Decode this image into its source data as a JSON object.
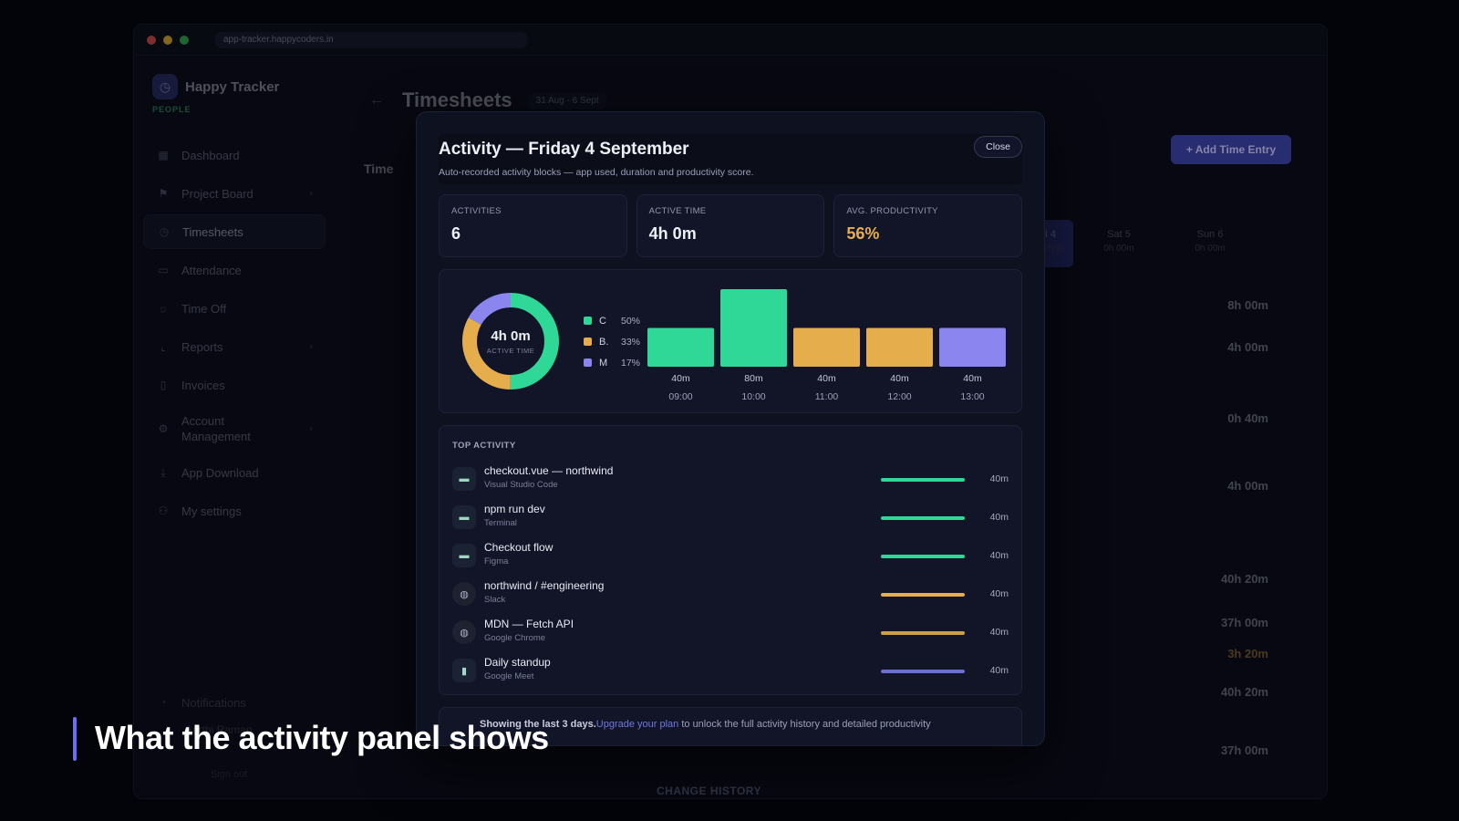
{
  "browser": {
    "url": "app-tracker.happycoders.in"
  },
  "sidebar": {
    "brand": "Happy Tracker",
    "brand_sub": "PEOPLE",
    "items": [
      {
        "label": "Dashboard",
        "icon": "grid-icon"
      },
      {
        "label": "Project Board",
        "icon": "board-icon"
      },
      {
        "label": "Timesheets",
        "icon": "clock-icon"
      },
      {
        "label": "Attendance",
        "icon": "calendar-icon"
      },
      {
        "label": "Time Off",
        "icon": "sun-icon"
      },
      {
        "label": "Reports",
        "icon": "chart-icon"
      },
      {
        "label": "Invoices",
        "icon": "file-icon"
      },
      {
        "label": "Account Management",
        "icon": "gear-icon"
      },
      {
        "label": "App Download",
        "icon": "download-icon"
      },
      {
        "label": "My settings",
        "icon": "user-icon"
      }
    ],
    "notifications": "Notifications",
    "user_name": "Aarthi Raman",
    "sign_out": "Sign out"
  },
  "page": {
    "title": "Timesheets",
    "date_range": "31 Aug - 6 Sept",
    "add_button": "+ Add Time Entry",
    "section_title": "Time",
    "week_days": [
      {
        "day": "Fri 4",
        "hours": "8h 00m"
      },
      {
        "day": "Sat 5",
        "hours": "0h 00m"
      },
      {
        "day": "Sun 6",
        "hours": "0h 00m"
      }
    ],
    "right_values": [
      "8h 00m",
      "4h 00m",
      "0h 40m",
      "4h 00m",
      "40h 20m",
      "37h 00m",
      "3h 20m",
      "40h 20m",
      "37h 00m"
    ],
    "change_history": "CHANGE HISTORY"
  },
  "modal": {
    "title": "Activity — Friday 4 September",
    "subtitle": "Auto-recorded activity blocks — app used, duration and productivity score.",
    "close_label": "Close",
    "stats": [
      {
        "label": "ACTIVITIES",
        "value": "6"
      },
      {
        "label": "ACTIVE TIME",
        "value": "4h 0m"
      },
      {
        "label": "AVG. PRODUCTIVITY",
        "value": "56%"
      }
    ],
    "donut_value": "4h 0m",
    "donut_label": "ACTIVE TIME",
    "top_activity_title": "TOP ACTIVITY",
    "activities": [
      {
        "name": "checkout.vue — northwind",
        "app": "Visual Studio Code",
        "duration": "40m",
        "icon": "terminal-icon",
        "color": "#2fd897"
      },
      {
        "name": "npm run dev",
        "app": "Terminal",
        "duration": "40m",
        "icon": "terminal-icon",
        "color": "#2fd897"
      },
      {
        "name": "Checkout flow",
        "app": "Figma",
        "duration": "40m",
        "icon": "terminal-icon",
        "color": "#2fd897"
      },
      {
        "name": "northwind / #engineering",
        "app": "Slack",
        "duration": "40m",
        "icon": "globe-icon",
        "color": "#e6ad4c"
      },
      {
        "name": "MDN — Fetch API",
        "app": "Google Chrome",
        "duration": "40m",
        "icon": "globe-icon",
        "color": "#c8a048"
      },
      {
        "name": "Daily standup",
        "app": "Google Meet",
        "duration": "40m",
        "icon": "mic-icon",
        "color": "#6a6fd0"
      }
    ],
    "footer_bold": "Showing the last 3 days.",
    "footer_link": "Upgrade your plan",
    "footer_rest": " to unlock the full activity history and detailed productivity"
  },
  "chart_data": {
    "type": "bar",
    "categories": [
      "09:00",
      "10:00",
      "11:00",
      "12:00",
      "13:00"
    ],
    "values": [
      40,
      80,
      40,
      40,
      40
    ],
    "value_labels": [
      "40m",
      "80m",
      "40m",
      "40m",
      "40m"
    ],
    "bar_colors": [
      "#2fd897",
      "#2fd897",
      "#e6ad4c",
      "#e6ad4c",
      "#8b86ef"
    ],
    "ylim": [
      0,
      80
    ],
    "donut": {
      "type": "pie",
      "categories": [
        "C",
        "B.",
        "M"
      ],
      "values": [
        50,
        33,
        17
      ],
      "value_labels": [
        "50%",
        "33%",
        "17%"
      ],
      "colors": [
        "#2fd897",
        "#e6ad4c",
        "#8b86ef"
      ]
    }
  },
  "caption": "What the activity panel shows"
}
